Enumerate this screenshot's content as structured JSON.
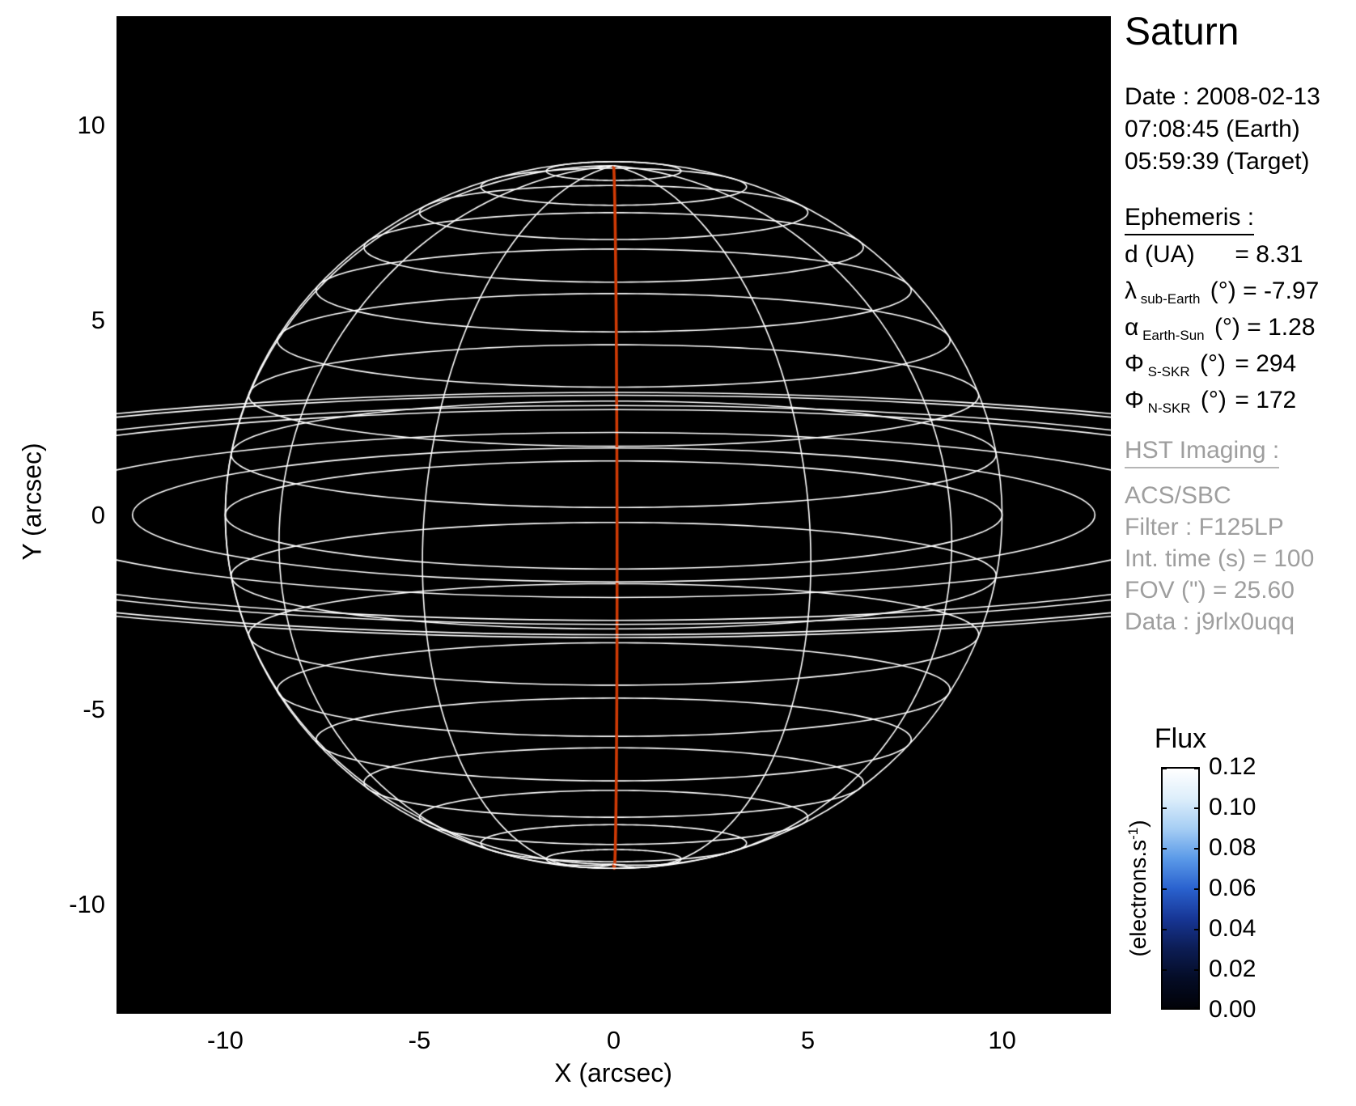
{
  "title": "Saturn",
  "observation": {
    "date": "Date : 2008-02-13",
    "earth_time": "07:08:45 (Earth)",
    "target_time": "05:59:39 (Target)"
  },
  "ephemeris": {
    "heading": "Ephemeris :",
    "rows": [
      {
        "symbol": "d",
        "subscript": "",
        "unit": "(UA)",
        "value": "= 8.31"
      },
      {
        "symbol": "λ",
        "subscript": "sub-Earth",
        "unit": "(°)",
        "value": "= -7.97"
      },
      {
        "symbol": "α",
        "subscript": "Earth-Sun",
        "unit": "(°)",
        "value": "= 1.28"
      },
      {
        "symbol": "Φ",
        "subscript": "S-SKR",
        "unit": "(°)",
        "value": "= 294"
      },
      {
        "symbol": "Φ",
        "subscript": "N-SKR",
        "unit": "(°)",
        "value": "= 172"
      }
    ]
  },
  "hst_imaging": {
    "heading": "HST Imaging :",
    "lines": [
      "ACS/SBC",
      "Filter : F125LP",
      "Int. time (s) = 100",
      "FOV (\") = 25.60",
      "Data : j9rlx0uqq"
    ]
  },
  "colorbar": {
    "title": "Flux",
    "unit_prefix": "(electrons.s",
    "unit_exponent": "-1",
    "unit_suffix": ")",
    "tick_labels": [
      "0.12",
      "0.10",
      "0.08",
      "0.06",
      "0.04",
      "0.02",
      "0.00"
    ],
    "gradient": [
      "#ffffff",
      "#ddeefb",
      "#a6cef4",
      "#5b9ae8",
      "#2a62cf",
      "#173696",
      "#0c1d55",
      "#040c26",
      "#010208"
    ]
  },
  "chart_data": {
    "type": "line",
    "title": "Saturn",
    "xlabel": "X (arcsec)",
    "ylabel": "Y (arcsec)",
    "xlim": [
      -12.8,
      12.8
    ],
    "ylim": [
      -12.8,
      12.8
    ],
    "xticks": [
      -10,
      -5,
      0,
      5,
      10
    ],
    "yticks": [
      10,
      5,
      0,
      -5,
      -10
    ],
    "grid": false,
    "background_color": "#000000",
    "grid_color": "#ffffff",
    "planet": {
      "equatorial_radius_arcsec": 10.0,
      "polar_radius_arcsec": 9.05,
      "sub_earth_latitude_deg": -7.97,
      "latitude_step_deg": 10,
      "meridian_step_deg": 30,
      "meridian_offset_deg": 0.5,
      "prime_meridian_longitude_deg": 0.5,
      "prime_meridian_color": "#cf3a05"
    },
    "rings": {
      "radii_arcsec": [
        12.39,
        15.27,
        19.51,
        20.27,
        22.17,
        22.7
      ],
      "opening_ratio": 0.1386,
      "color": "#ffffff"
    }
  }
}
